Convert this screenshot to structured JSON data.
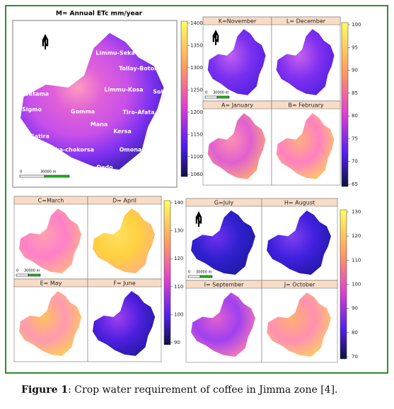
{
  "main_panel": {
    "title": "M= Annual ETc mm/year",
    "north": "N",
    "scale_start": "0",
    "scale_end": "30000 m",
    "places": [
      "Limmu-Seka",
      "Tollay-Botor",
      "Limmu-Kosa",
      "Sokoru",
      "Setama",
      "Sigmo",
      "Gomma",
      "Tiro-Afata",
      "Mana",
      "Kersa",
      "Gatira",
      "Seka-chokorsa",
      "Omonada",
      "Dedo"
    ],
    "colorbar_ticks": [
      1400,
      1350,
      1300,
      1250,
      1200,
      1150,
      1100,
      1060
    ]
  },
  "groups": [
    {
      "panels": [
        "K=November",
        "L= December",
        "A= January",
        "B= February"
      ],
      "north": "N",
      "scale_start": "0",
      "scale_end": "30000 m",
      "colorbar_ticks": [
        100,
        95,
        90,
        85,
        80,
        75,
        70,
        65
      ]
    },
    {
      "panels": [
        "C=March",
        "D= April",
        "E= May",
        "F= June"
      ],
      "scale_start": "0",
      "scale_end": "30000 m",
      "colorbar_ticks": [
        140,
        130,
        120,
        110,
        100,
        90
      ]
    },
    {
      "panels": [
        "G=July",
        "H= August",
        "I= September",
        "J= October"
      ],
      "north": "N",
      "scale_start": "0",
      "scale_end": "30000 m",
      "colorbar_ticks": [
        130,
        120,
        110,
        100,
        90,
        80,
        70
      ]
    }
  ],
  "caption": {
    "label": "Figure 1",
    "text": ": Crop water requirement of coffee in Jimma zone [4]."
  }
}
